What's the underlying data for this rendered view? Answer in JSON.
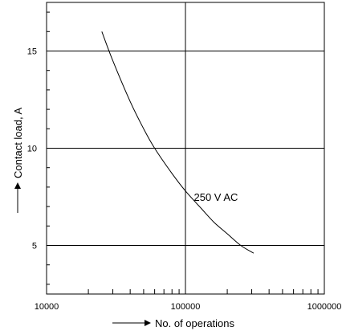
{
  "chart_data": {
    "type": "line",
    "xlabel": "No. of operations",
    "ylabel": "Contact load, A",
    "x_scale": "log",
    "xlim": [
      10000,
      1000000
    ],
    "ylim": [
      2.5,
      17.5
    ],
    "x_ticks": [
      10000,
      100000,
      1000000
    ],
    "x_tick_labels": [
      "10000",
      "100000",
      "1000000"
    ],
    "y_ticks": [
      5,
      10,
      15
    ],
    "y_tick_labels": [
      "5",
      "10",
      "15"
    ],
    "grid": true,
    "series": [
      {
        "name": "250 V AC",
        "x": [
          25000,
          30000,
          40000,
          50000,
          60000,
          80000,
          100000,
          130000,
          160000,
          200000,
          250000,
          310000
        ],
        "y": [
          16.0,
          14.5,
          12.4,
          11.0,
          10.0,
          8.7,
          7.8,
          6.9,
          6.2,
          5.6,
          5.0,
          4.6
        ]
      }
    ],
    "annotations": [
      {
        "text": "250 V AC",
        "x": 115000,
        "y": 7.3
      }
    ]
  }
}
